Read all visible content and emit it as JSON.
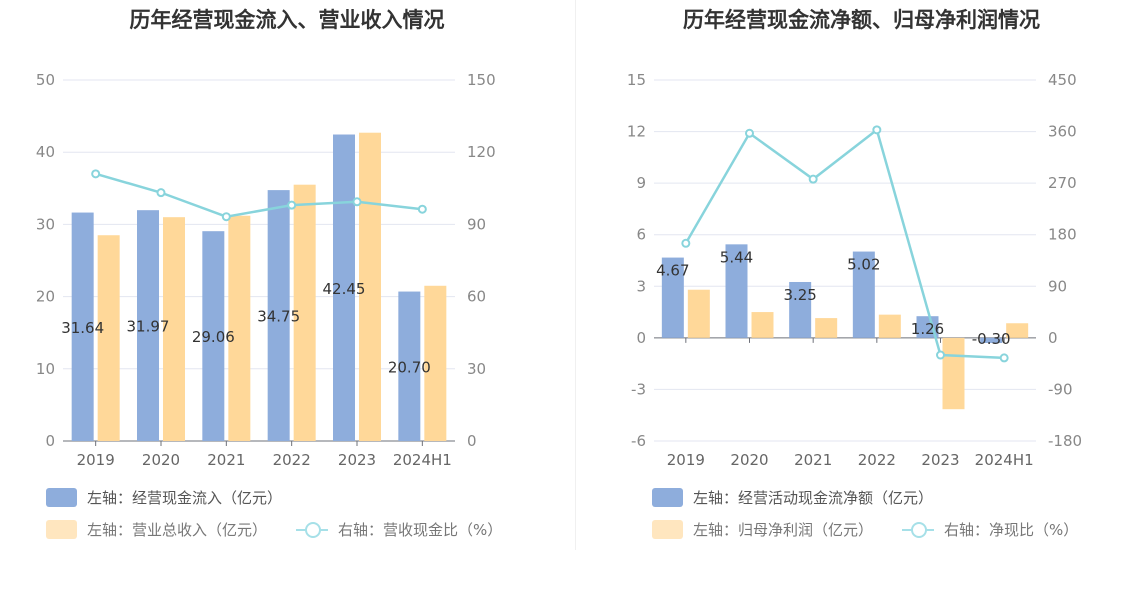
{
  "colors": {
    "bar_primary": "#8eaddc",
    "bar_secondary": "#ffd899",
    "line": "#88d4dc",
    "legend_primary": "#8eaddc",
    "legend_secondary": "#ffe6bf",
    "legend_line": "#a6e0e8"
  },
  "chart_data": [
    {
      "type": "bar",
      "title": "历年经营现金流入、营业收入情况",
      "categories": [
        "2019",
        "2020",
        "2021",
        "2022",
        "2023",
        "2024H1"
      ],
      "left_axis": {
        "min": 0,
        "max": 50,
        "ticks": [
          "0",
          "10",
          "20",
          "30",
          "40",
          "50"
        ]
      },
      "right_axis": {
        "min": 0,
        "max": 150,
        "ticks": [
          "0",
          "30",
          "60",
          "90",
          "120",
          "150"
        ]
      },
      "series": [
        {
          "name": "左轴：经营现金流入（亿元）",
          "axis": "left",
          "kind": "bar",
          "values": [
            31.64,
            31.97,
            29.06,
            34.75,
            42.45,
            20.7
          ],
          "labels": [
            "31.64",
            "31.97",
            "29.06",
            "34.75",
            "42.45",
            "20.70"
          ]
        },
        {
          "name": "左轴：营业总收入（亿元）",
          "axis": "left",
          "kind": "bar",
          "values": [
            28.5,
            31.0,
            31.2,
            35.5,
            42.7,
            21.5
          ]
        },
        {
          "name": "右轴：营收现金比（%）",
          "axis": "right",
          "kind": "line",
          "values": [
            111.0,
            103.2,
            93.2,
            98.0,
            99.4,
            96.3
          ]
        }
      ],
      "grid": true,
      "legend_position": "bottom"
    },
    {
      "type": "bar",
      "title": "历年经营现金流净额、归母净利润情况",
      "categories": [
        "2019",
        "2020",
        "2021",
        "2022",
        "2023",
        "2024H1"
      ],
      "left_axis": {
        "min": -6,
        "max": 15,
        "ticks": [
          "-6",
          "-3",
          "0",
          "3",
          "6",
          "9",
          "12",
          "15"
        ]
      },
      "right_axis": {
        "min": -180,
        "max": 450,
        "ticks": [
          "-180",
          "-90",
          "0",
          "90",
          "180",
          "270",
          "360",
          "450"
        ]
      },
      "series": [
        {
          "name": "左轴：经营活动现金流净额（亿元）",
          "axis": "left",
          "kind": "bar",
          "values": [
            4.67,
            5.44,
            3.25,
            5.02,
            1.26,
            -0.3
          ],
          "labels": [
            "4.67",
            "5.44",
            "3.25",
            "5.02",
            "1.26",
            "-0.30"
          ]
        },
        {
          "name": "左轴：归母净利润（亿元）",
          "axis": "left",
          "kind": "bar",
          "values": [
            2.8,
            1.5,
            1.15,
            1.35,
            -4.15,
            0.85
          ]
        },
        {
          "name": "右轴：净现比（%）",
          "axis": "right",
          "kind": "line",
          "values": [
            165,
            357,
            277,
            363,
            -30,
            -35
          ]
        }
      ],
      "grid": true,
      "legend_position": "bottom"
    }
  ],
  "legend_left": {
    "item1": "左轴：经营现金流入（亿元）",
    "item2": "左轴：营业总收入（亿元）",
    "item3": "右轴：营收现金比（%）"
  },
  "legend_right": {
    "item1": "左轴：经营活动现金流净额（亿元）",
    "item2": "左轴：归母净利润（亿元）",
    "item3": "右轴：净现比（%）"
  }
}
